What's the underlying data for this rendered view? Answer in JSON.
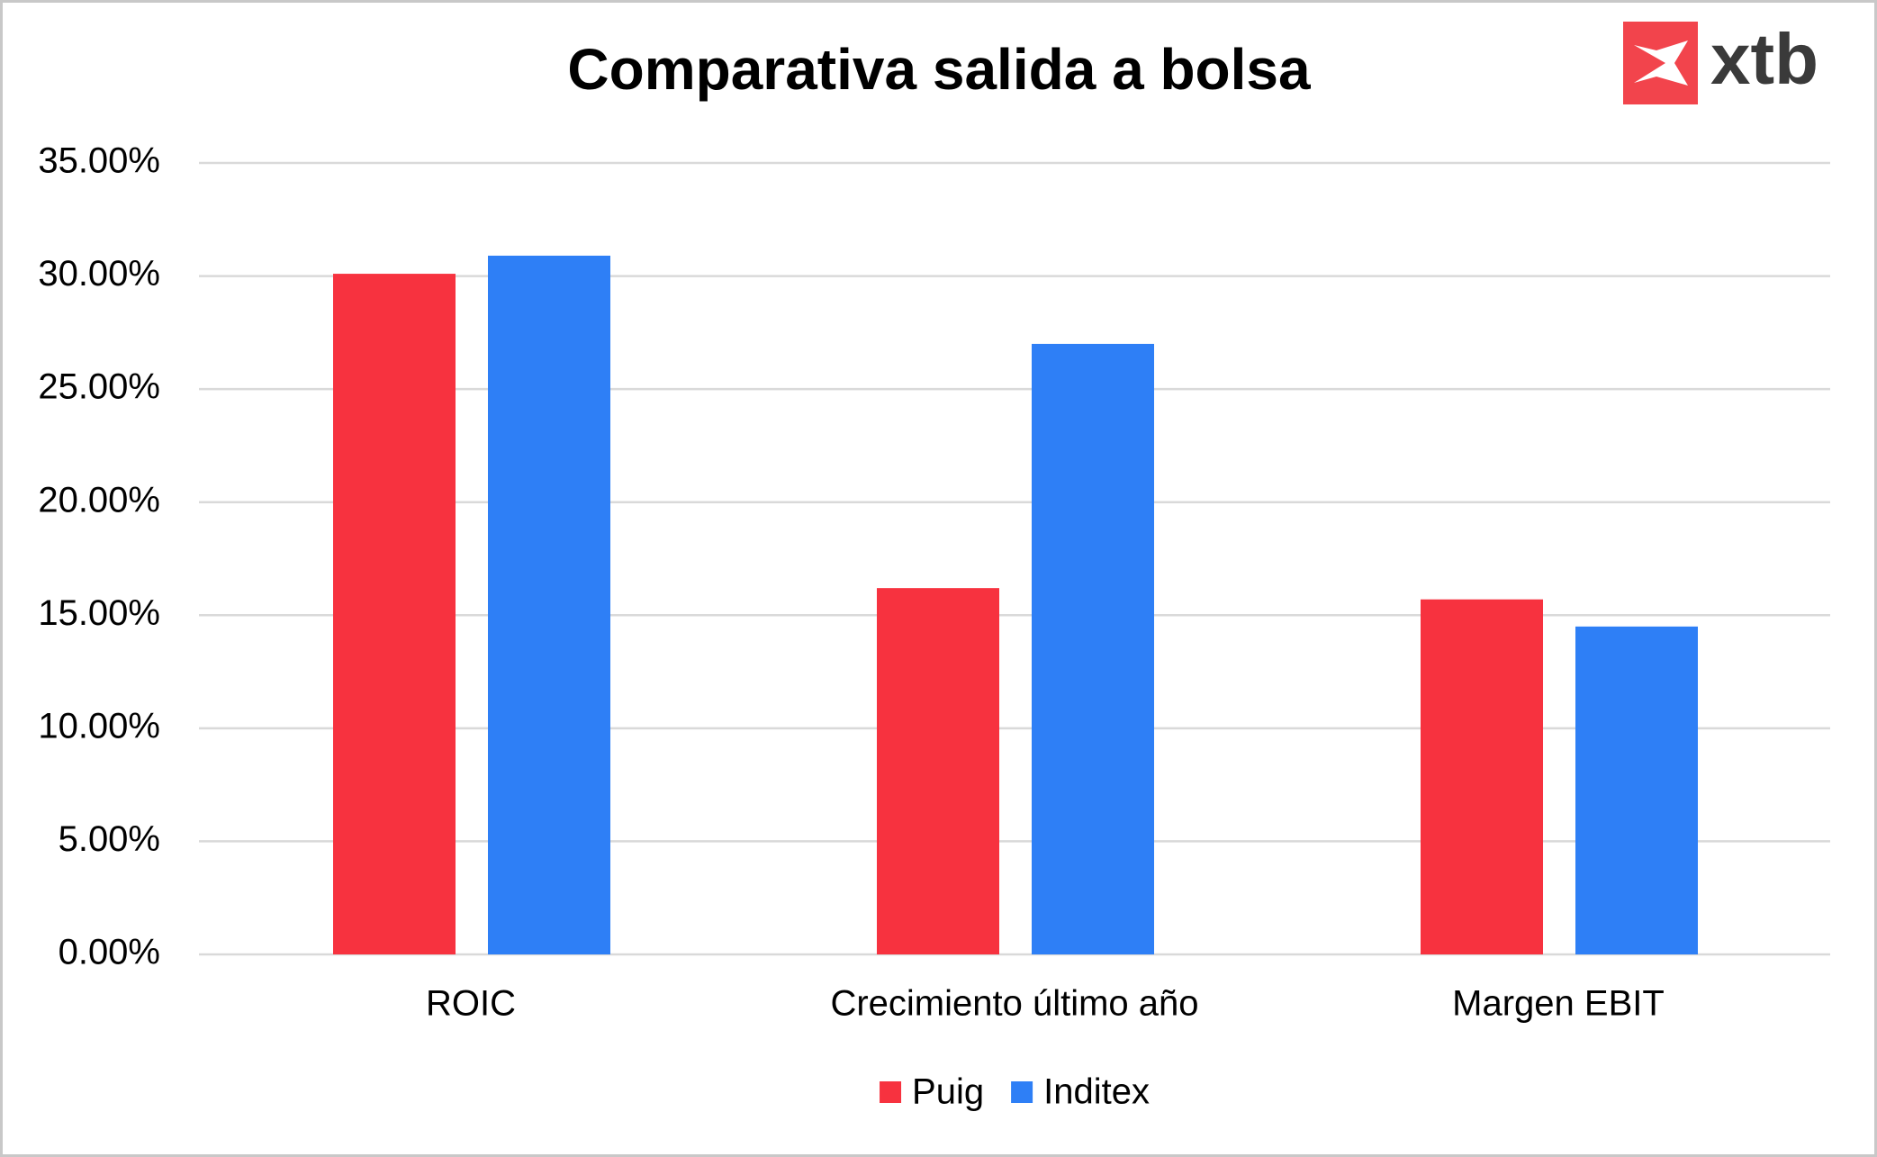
{
  "chart_data": {
    "type": "bar",
    "title": "Comparativa salida a bolsa",
    "logo": "xtb",
    "categories": [
      "ROIC",
      "Crecimiento último año",
      "Margen EBIT"
    ],
    "series": [
      {
        "name": "Puig",
        "color": "#f7323f",
        "values": [
          30.1,
          16.2,
          15.7
        ]
      },
      {
        "name": "Inditex",
        "color": "#2e7ff6",
        "values": [
          30.9,
          27.0,
          14.5
        ]
      }
    ],
    "ylim": [
      0,
      35
    ],
    "yticks": [
      {
        "value": 0,
        "label": "0.00%"
      },
      {
        "value": 5,
        "label": "5.00%"
      },
      {
        "value": 10,
        "label": "10.00%"
      },
      {
        "value": 15,
        "label": "15.00%"
      },
      {
        "value": 20,
        "label": "20.00%"
      },
      {
        "value": 25,
        "label": "25.00%"
      },
      {
        "value": 30,
        "label": "30.00%"
      },
      {
        "value": 35,
        "label": "35.00%"
      }
    ],
    "grid": true,
    "legend": "bottom"
  }
}
